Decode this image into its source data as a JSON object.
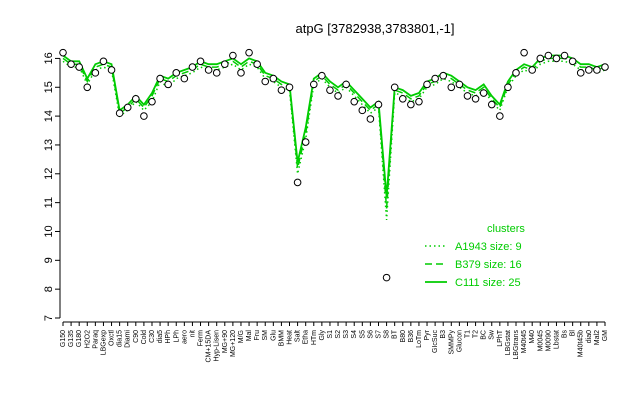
{
  "chart_data": {
    "type": "line",
    "title": "atpG [3782938,3783801,-1]",
    "xlabel": "",
    "ylabel": "",
    "ylim": [
      7,
      16.5
    ],
    "yticks": [
      7,
      8,
      9,
      10,
      11,
      12,
      13,
      14,
      15,
      16
    ],
    "xtick_labels": [
      "G150",
      "G135",
      "G180",
      "H2O2",
      "Paraq",
      "LBGexp",
      "Oxctl",
      "dia15",
      "Diami",
      "C90",
      "Cold",
      "C30",
      "dia5",
      "HPh",
      "LPh",
      "aero",
      "nit",
      "Ferm",
      "CM+15DA",
      "Hyp-Lisen",
      "MG+90",
      "MG+120",
      "M/G",
      "Mal",
      "Fru",
      "SM",
      "Glu",
      "BMM",
      "Heat",
      "Salt",
      "Etha",
      "HTm",
      "Gly",
      "S1",
      "S2",
      "S3",
      "S4",
      "S5",
      "S6",
      "S7",
      "S8",
      "BT",
      "B80",
      "B36",
      "LoTm",
      "Pyr",
      "GIcSuc",
      "B3",
      "SMMPy",
      "Glucon",
      "T1",
      "T2",
      "BC",
      "Sw",
      "LPhT",
      "LBGstat",
      "LBGtrans",
      "M40t45",
      "M40",
      "M0045",
      "M0090",
      "Lbstat",
      "Bs",
      "Bl",
      "M40t45b",
      "dia0",
      "Mal2",
      "GM"
    ],
    "series": [
      {
        "name": "A1943 size: 9",
        "style": "dotted",
        "values": [
          15.9,
          15.7,
          15.7,
          15.1,
          15.6,
          15.7,
          15.6,
          14.0,
          14.2,
          14.5,
          14.2,
          14.5,
          15.2,
          15.0,
          15.3,
          15.4,
          15.5,
          15.7,
          15.6,
          15.6,
          15.7,
          15.8,
          15.6,
          15.8,
          15.7,
          15.3,
          15.2,
          15.0,
          14.9,
          12.0,
          13.2,
          15.1,
          15.3,
          15.0,
          14.8,
          15.0,
          14.7,
          14.4,
          14.1,
          14.3,
          10.4,
          14.8,
          14.7,
          14.5,
          14.6,
          15.0,
          15.1,
          15.3,
          15.2,
          15.0,
          14.8,
          14.7,
          14.9,
          14.5,
          14.2,
          15.0,
          15.4,
          15.6,
          15.5,
          15.8,
          15.9,
          15.9,
          15.9,
          15.8,
          15.6,
          15.6,
          15.5,
          15.6
        ]
      },
      {
        "name": "B379 size: 16",
        "style": "dashed",
        "values": [
          16.0,
          15.8,
          15.8,
          15.2,
          15.7,
          15.8,
          15.7,
          14.1,
          14.3,
          14.6,
          14.3,
          14.7,
          15.3,
          15.2,
          15.4,
          15.5,
          15.6,
          15.8,
          15.7,
          15.7,
          15.8,
          15.9,
          15.7,
          15.9,
          15.8,
          15.4,
          15.3,
          15.1,
          15.0,
          12.2,
          13.4,
          15.2,
          15.4,
          15.1,
          14.9,
          15.1,
          14.8,
          14.5,
          14.2,
          14.4,
          10.8,
          14.9,
          14.8,
          14.6,
          14.7,
          15.1,
          15.2,
          15.4,
          15.3,
          15.1,
          14.9,
          14.8,
          15.0,
          14.6,
          14.3,
          15.1,
          15.5,
          15.7,
          15.6,
          15.9,
          16.0,
          16.0,
          16.0,
          15.9,
          15.7,
          15.7,
          15.6,
          15.7
        ]
      },
      {
        "name": "C111 size: 25",
        "style": "solid",
        "values": [
          16.1,
          15.9,
          15.9,
          15.3,
          15.8,
          15.9,
          15.8,
          14.2,
          14.4,
          14.7,
          14.4,
          14.8,
          15.4,
          15.3,
          15.5,
          15.6,
          15.7,
          15.9,
          15.8,
          15.8,
          15.9,
          16.0,
          15.8,
          16.0,
          15.9,
          15.5,
          15.4,
          15.2,
          15.1,
          12.4,
          13.6,
          15.3,
          15.5,
          15.2,
          15.0,
          15.2,
          14.9,
          14.6,
          14.3,
          14.5,
          11.2,
          15.0,
          14.9,
          14.7,
          14.8,
          15.2,
          15.3,
          15.5,
          15.4,
          15.2,
          15.0,
          14.9,
          15.1,
          14.7,
          14.4,
          15.2,
          15.6,
          15.8,
          15.7,
          16.0,
          16.1,
          16.1,
          16.1,
          16.0,
          15.8,
          15.8,
          15.7,
          15.8
        ]
      }
    ],
    "points": [
      16.2,
      15.8,
      15.7,
      15.0,
      15.5,
      15.9,
      15.6,
      14.1,
      14.3,
      14.6,
      14.0,
      14.5,
      15.3,
      15.1,
      15.5,
      15.3,
      15.7,
      15.9,
      15.6,
      15.5,
      15.8,
      16.1,
      15.5,
      16.2,
      15.8,
      15.2,
      15.3,
      14.9,
      15.0,
      11.7,
      13.1,
      15.1,
      15.4,
      14.9,
      14.7,
      15.1,
      14.5,
      14.2,
      13.9,
      14.4,
      8.4,
      15.0,
      14.6,
      14.4,
      14.5,
      15.1,
      15.3,
      15.4,
      15.0,
      15.1,
      14.7,
      14.6,
      14.8,
      14.4,
      14.0,
      15.0,
      15.5,
      16.2,
      15.6,
      16.0,
      16.1,
      16.0,
      16.1,
      15.9,
      15.5,
      15.6,
      15.6,
      15.7
    ],
    "legend": {
      "title": "clusters",
      "placement": "right",
      "entries": [
        "A1943 size: 9",
        "B379 size: 16",
        "C111 size: 25"
      ]
    },
    "colors": {
      "line": "#00cc00",
      "point_fill": "#ffffff",
      "point_stroke": "#000000"
    }
  }
}
